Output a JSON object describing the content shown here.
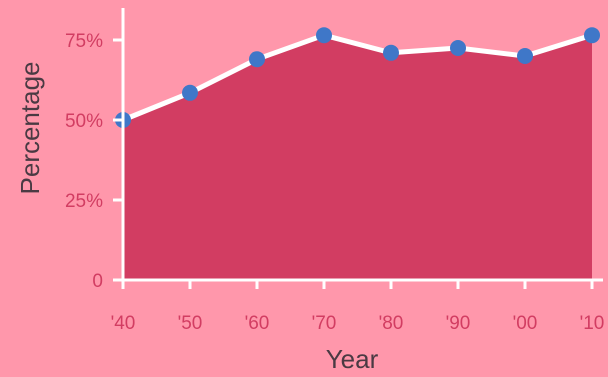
{
  "chart_data": {
    "type": "area",
    "title": "",
    "xlabel": "Year",
    "ylabel": "Percentage",
    "categories": [
      "'40",
      "'50",
      "'60",
      "'70",
      "'80",
      "'90",
      "'00",
      "'10"
    ],
    "series": [
      {
        "values": [
          50,
          58.5,
          69,
          76.5,
          71,
          72.5,
          70,
          76.5
        ]
      }
    ],
    "ylim": [
      0,
      85
    ],
    "yticks": [
      {
        "value": 0,
        "label": "0"
      },
      {
        "value": 25,
        "label": "25%"
      },
      {
        "value": 50,
        "label": "50%"
      },
      {
        "value": 75,
        "label": "75%"
      }
    ],
    "grid": false,
    "colors": {
      "background": "#ff97ab",
      "area_fill": "#d23d62",
      "line": "#ffffff",
      "marker": "#3f77c8",
      "axis": "#ffffff",
      "tick_text": "#d23d62",
      "axis_title": "#4a3a43"
    }
  }
}
